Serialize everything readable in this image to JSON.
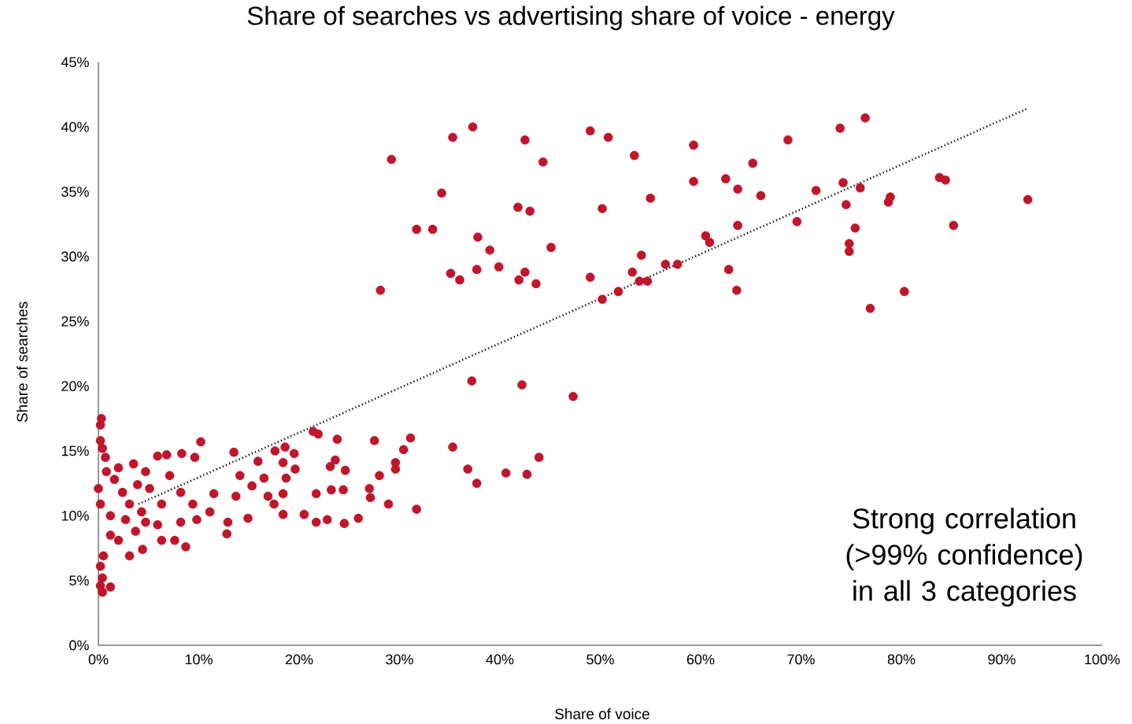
{
  "chart_data": {
    "type": "scatter",
    "title": "Share of searches vs advertising share of voice - energy",
    "xlabel": "Share of voice",
    "ylabel": "Share of searches",
    "annotations": [
      "Strong correlation (>99% confidence) in all 3 categories"
    ],
    "xlim": [
      0,
      100
    ],
    "ylim": [
      0,
      45
    ],
    "xticks": [
      {
        "value": 0,
        "label": "0%"
      },
      {
        "value": 10,
        "label": "10%"
      },
      {
        "value": 20,
        "label": "20%"
      },
      {
        "value": 30,
        "label": "30%"
      },
      {
        "value": 40,
        "label": "40%"
      },
      {
        "value": 50,
        "label": "50%"
      },
      {
        "value": 60,
        "label": "60%"
      },
      {
        "value": 70,
        "label": "70%"
      },
      {
        "value": 80,
        "label": "80%"
      },
      {
        "value": 90,
        "label": "90%"
      },
      {
        "value": 100,
        "label": "100%"
      }
    ],
    "yticks": [
      {
        "value": 0,
        "label": "0%"
      },
      {
        "value": 5,
        "label": "5%"
      },
      {
        "value": 10,
        "label": "10%"
      },
      {
        "value": 15,
        "label": "15%"
      },
      {
        "value": 20,
        "label": "20%"
      },
      {
        "value": 25,
        "label": "25%"
      },
      {
        "value": 30,
        "label": "30%"
      },
      {
        "value": 35,
        "label": "35%"
      },
      {
        "value": 40,
        "label": "40%"
      },
      {
        "value": 45,
        "label": "45%"
      }
    ],
    "series": [
      {
        "color": "#c0152a",
        "marker": "circle",
        "x": [
          29.2,
          35.3,
          37.3,
          42.5,
          44.3,
          49.0,
          50.8,
          53.4,
          59.3,
          34.2,
          31.7,
          33.3,
          41.8,
          43.0,
          50.2,
          55.0,
          59.3,
          62.5,
          63.7,
          65.2,
          66.0,
          68.7,
          71.5,
          73.9,
          76.4,
          74.2,
          75.9,
          74.5,
          75.4,
          69.6,
          78.9,
          78.7,
          83.8,
          84.4,
          85.2,
          92.6,
          74.8,
          74.8,
          76.9,
          80.3,
          63.7,
          60.5,
          60.9,
          62.8,
          63.6,
          57.7,
          56.5,
          54.1,
          53.2,
          53.9,
          54.7,
          51.8,
          50.2,
          49.0,
          45.1,
          37.8,
          39.0,
          39.9,
          37.7,
          35.1,
          36.0,
          41.9,
          42.5,
          43.6,
          28.1,
          37.2,
          42.2,
          47.3,
          35.3,
          36.8,
          37.7,
          40.6,
          42.7,
          43.9,
          31.1,
          30.4,
          29.6,
          29.6,
          28.0,
          27.5,
          31.7,
          28.9,
          27.1,
          27.0,
          25.9,
          24.5,
          22.8,
          21.7,
          20.5,
          21.4,
          21.9,
          23.8,
          23.1,
          23.6,
          24.6,
          23.2,
          24.4,
          21.7,
          18.6,
          19.5,
          17.6,
          18.4,
          19.6,
          18.7,
          18.4,
          16.9,
          17.5,
          18.4,
          14.9,
          12.9,
          12.8,
          10.2,
          9.6,
          8.3,
          6.8,
          13.5,
          15.9,
          14.1,
          16.5,
          15.3,
          13.7,
          11.5,
          8.7,
          7.6,
          6.3,
          4.4,
          3.1,
          2.0,
          11.1,
          9.8,
          8.2,
          5.9,
          4.7,
          3.7,
          1.2,
          0.5,
          0.2,
          0.4,
          1.2,
          0.2,
          0.4,
          0.2,
          0.3,
          0.2,
          0.4,
          0.7,
          0.8,
          1.6,
          2.4,
          3.1,
          3.9,
          5.1,
          6.3,
          7.1,
          8.2,
          9.4,
          1.2,
          2.7,
          4.3,
          0.0,
          0.2,
          2.0,
          3.5,
          4.7,
          5.9
        ],
        "values": [
          37.5,
          39.2,
          40.0,
          39.0,
          37.3,
          39.7,
          39.2,
          37.8,
          38.6,
          34.9,
          32.1,
          32.1,
          33.8,
          33.5,
          33.7,
          34.5,
          35.8,
          36.0,
          35.2,
          37.2,
          34.7,
          39.0,
          35.1,
          39.9,
          40.7,
          35.7,
          35.3,
          34.0,
          32.2,
          32.7,
          34.6,
          34.2,
          36.1,
          35.9,
          32.4,
          34.4,
          31.0,
          30.4,
          26.0,
          27.3,
          32.4,
          31.6,
          31.1,
          29.0,
          27.4,
          29.4,
          29.4,
          30.1,
          28.8,
          28.1,
          28.1,
          27.3,
          26.7,
          28.4,
          30.7,
          31.5,
          30.5,
          29.2,
          29.0,
          28.7,
          28.2,
          28.2,
          28.8,
          27.9,
          27.4,
          20.4,
          20.1,
          19.2,
          15.3,
          13.6,
          12.5,
          13.3,
          13.2,
          14.5,
          16.0,
          15.1,
          14.1,
          13.6,
          13.1,
          15.8,
          10.5,
          10.9,
          11.4,
          12.1,
          9.8,
          9.4,
          9.7,
          9.5,
          10.1,
          16.5,
          16.3,
          15.9,
          13.8,
          14.3,
          13.5,
          12.0,
          12.0,
          11.7,
          15.3,
          14.8,
          15.0,
          14.1,
          13.6,
          12.9,
          11.7,
          11.5,
          10.9,
          10.1,
          9.8,
          9.5,
          8.6,
          15.7,
          14.5,
          14.8,
          14.7,
          14.9,
          14.2,
          13.1,
          12.9,
          12.3,
          11.5,
          11.7,
          7.6,
          8.1,
          8.1,
          7.4,
          6.9,
          8.1,
          10.3,
          9.7,
          9.5,
          9.3,
          9.5,
          8.8,
          8.5,
          6.9,
          6.1,
          5.2,
          4.5,
          4.6,
          4.1,
          17.0,
          17.5,
          15.8,
          15.2,
          14.5,
          13.4,
          12.8,
          11.8,
          10.9,
          12.4,
          12.1,
          10.9,
          13.1,
          11.8,
          10.9,
          10.0,
          9.7,
          10.3,
          12.1,
          10.9,
          13.7,
          14.0,
          13.4,
          14.6
        ]
      },
      {
        "type": "line",
        "color": "#000000",
        "marker": "none",
        "line_style": "dotted",
        "x": [
          4,
          92.5
        ],
        "values": [
          10.9,
          41.4
        ]
      }
    ]
  }
}
